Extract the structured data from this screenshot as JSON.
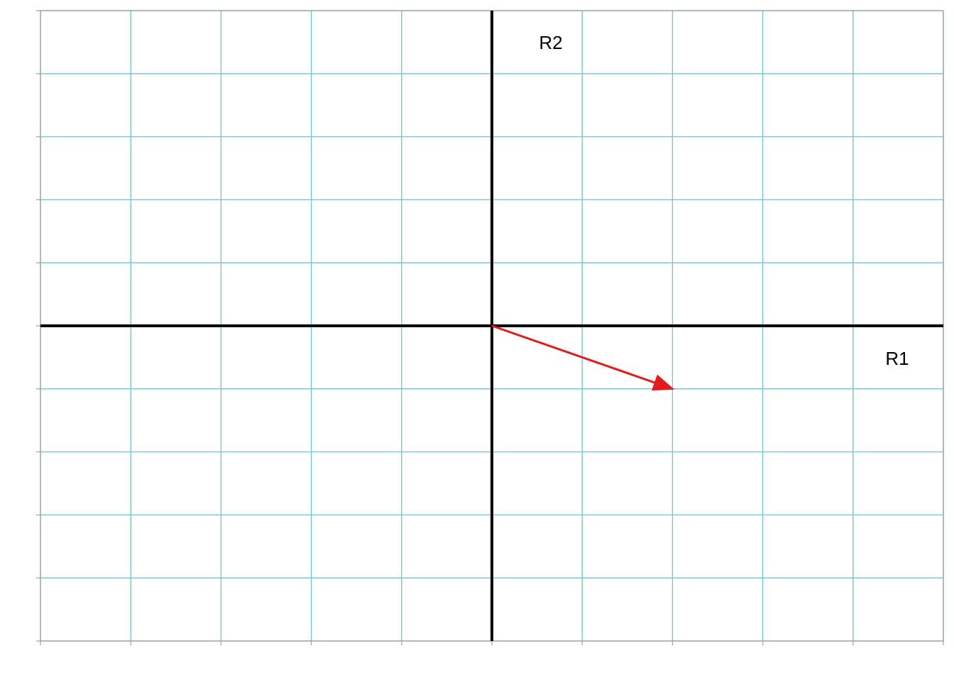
{
  "chart_data": {
    "type": "scatter",
    "title": "",
    "xlabel": "R1",
    "ylabel": "R2",
    "xlim": [
      -5,
      5
    ],
    "ylim": [
      -5,
      5
    ],
    "x_major_ticks": [
      -5,
      -4,
      -3,
      -2,
      -1,
      0,
      1,
      2,
      3,
      4,
      5
    ],
    "y_major_ticks": [
      -5,
      -4,
      -3,
      -2,
      -1,
      0,
      1,
      2,
      3,
      4,
      5
    ],
    "tick_labels_shown": false,
    "grid": true,
    "axes_through_origin": true,
    "vectors": [
      {
        "start": [
          0,
          0
        ],
        "end": [
          2,
          -1
        ]
      }
    ]
  },
  "colors": {
    "grid": "#6cc4d4",
    "frame": "#a6a6a6",
    "axis": "#000000",
    "vector": "#e41a1c",
    "background": "#ffffff"
  }
}
